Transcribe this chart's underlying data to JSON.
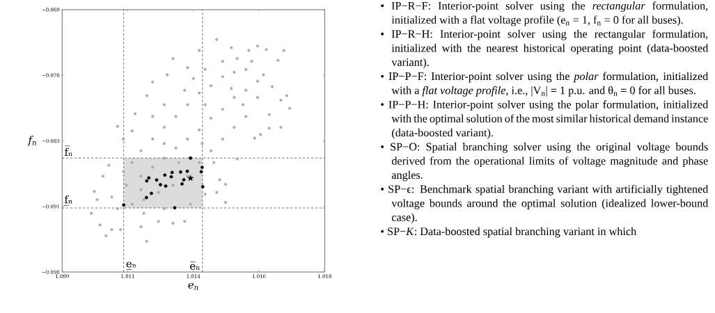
{
  "chart_data": {
    "type": "scatter",
    "xlabel": "e$_{n}$",
    "ylabel": "f$_{n}$",
    "xlim": [
      1.009,
      1.018
    ],
    "xticks": [
      {
        "value": 1.009,
        "label": "1.009"
      },
      {
        "value": 1.01125,
        "label": "1.011"
      },
      {
        "value": 1.0135,
        "label": "1.014"
      },
      {
        "value": 1.01575,
        "label": "1.016"
      },
      {
        "value": 1.018,
        "label": "1.018"
      }
    ],
    "ylim": [
      -0.098,
      -0.069
    ],
    "yticks": [
      {
        "value": -0.098,
        "label": "−0.098"
      },
      {
        "value": -0.09075,
        "label": "−0.091"
      },
      {
        "value": -0.0835,
        "label": "−0.083"
      },
      {
        "value": -0.07625,
        "label": "−0.076"
      },
      {
        "value": -0.069,
        "label": "−0.069"
      }
    ],
    "ref_lines": [
      {
        "axis": "x",
        "value": 1.01111,
        "label": "e̲ₙ",
        "line_style": "dashed"
      },
      {
        "axis": "x",
        "value": 1.01381,
        "label": "e̅ₙ",
        "line_style": "dashed"
      },
      {
        "axis": "y",
        "value": -0.0854,
        "label": "f̅ₙ",
        "line_style": "dashed"
      },
      {
        "axis": "y",
        "value": -0.09092,
        "label": "f̲ₙ",
        "line_style": "dashed"
      }
    ],
    "bands": [
      {
        "axis": "x",
        "from": 1.01111,
        "to": 1.01381,
        "color": "#dcdcdc"
      }
    ],
    "series": [
      {
        "color": "#808080",
        "marker": "circle",
        "x": [
          1.0143,
          1.0157,
          1.0166,
          1.0168,
          1.0165,
          1.0161,
          1.0156,
          1.0146,
          1.0146,
          1.0143,
          1.0119,
          1.0105,
          1.01,
          1.0101,
          1.0109,
          1.0115,
          1.0119,
          1.0128,
          1.0137,
          1.0148,
          1.0154,
          1.016,
          1.0164,
          1.0167,
          1.0161,
          1.0158,
          1.015,
          1.0144,
          1.0139,
          1.0132,
          1.0128,
          1.0123,
          1.0117,
          1.011,
          1.0107,
          1.0103,
          1.0102,
          1.0104,
          1.0106,
          1.0111,
          1.0114,
          1.0121,
          1.0126,
          1.0133,
          1.0139,
          1.0145,
          1.015,
          1.0155,
          1.0159,
          1.0162,
          1.0165,
          1.0114,
          1.0117,
          1.0121,
          1.0125,
          1.0129,
          1.0133,
          1.0137,
          1.0141,
          1.0145,
          1.0149,
          1.0153,
          1.0157,
          1.0112,
          1.0117,
          1.0121,
          1.0125,
          1.0129,
          1.0133,
          1.0137,
          1.0141,
          1.0145,
          1.0149,
          1.0153,
          1.0157,
          1.0114,
          1.0118,
          1.0123,
          1.0128,
          1.0133,
          1.0137,
          1.0141,
          1.0145,
          1.0149,
          1.0153,
          1.0109,
          1.0107,
          1.0118,
          1.0125,
          1.0134,
          1.0138,
          1.0125,
          1.0121,
          1.0132,
          1.0135,
          1.0148,
          1.0152,
          1.0142,
          1.0125,
          1.013,
          1.0117,
          1.0111,
          1.0139
        ],
        "values": [
          -0.0723,
          -0.073,
          -0.0735,
          -0.0799,
          -0.082,
          -0.0821,
          -0.0832,
          -0.0903,
          -0.0883,
          -0.0892,
          -0.0946,
          -0.094,
          -0.0915,
          -0.0891,
          -0.0819,
          -0.0805,
          -0.0785,
          -0.0744,
          -0.0735,
          -0.0732,
          -0.0735,
          -0.0734,
          -0.0746,
          -0.0785,
          -0.0806,
          -0.0828,
          -0.0855,
          -0.0878,
          -0.0894,
          -0.0924,
          -0.0926,
          -0.0924,
          -0.093,
          -0.0933,
          -0.0933,
          -0.0928,
          -0.09,
          -0.0874,
          -0.0862,
          -0.0833,
          -0.0824,
          -0.077,
          -0.0762,
          -0.0754,
          -0.0756,
          -0.0747,
          -0.0744,
          -0.0747,
          -0.0762,
          -0.0775,
          -0.079,
          -0.0859,
          -0.0846,
          -0.0833,
          -0.082,
          -0.0808,
          -0.0795,
          -0.0782,
          -0.0774,
          -0.0764,
          -0.0759,
          -0.0756,
          -0.0769,
          -0.0884,
          -0.0874,
          -0.0864,
          -0.0854,
          -0.0843,
          -0.0833,
          -0.0823,
          -0.081,
          -0.08,
          -0.0787,
          -0.0779,
          -0.0787,
          -0.0905,
          -0.09,
          -0.0892,
          -0.0884,
          -0.0874,
          -0.0859,
          -0.0846,
          -0.0833,
          -0.082,
          -0.0808,
          -0.091,
          -0.0897,
          -0.0915,
          -0.091,
          -0.0905,
          -0.0838,
          -0.0795,
          -0.0808,
          -0.0779,
          -0.0766,
          -0.0777,
          -0.0795,
          -0.0859,
          -0.0838,
          -0.0859,
          -0.0889,
          -0.0869,
          -0.0795
        ]
      },
      {
        "color": "#000000",
        "marker": "circle",
        "x": [
          1.0134,
          1.0138,
          1.01377,
          1.01329,
          1.01306,
          1.01277,
          1.01252,
          1.01274,
          1.01197,
          1.0119,
          1.01224,
          1.01237,
          1.01255,
          1.01317,
          1.01311,
          1.01382,
          1.01206,
          1.01189,
          1.01111,
          1.01286
        ],
        "values": [
          -0.0854,
          -0.08643,
          -0.08691,
          -0.08686,
          -0.08694,
          -0.08699,
          -0.08729,
          -0.08747,
          -0.0876,
          -0.08793,
          -0.08783,
          -0.08834,
          -0.0885,
          -0.0878,
          -0.08826,
          -0.08857,
          -0.08931,
          -0.08977,
          -0.09059,
          -0.0909
        ]
      },
      {
        "color": "#000000",
        "marker": "star",
        "x": [
          1.0134
        ],
        "values": [
          -0.08763
        ]
      }
    ],
    "annotations": [
      "• IP−R−F: Interior-point solver using the *rectangular* formulation, initialized with a flat voltage profile (e$_{n}$ = 1, f$_{n}$ = 0 for all buses).",
      "• IP−R−H: Interior-point solver using the rectangular formulation, initialized with the nearest historical operating point (data-boosted variant).",
      "• IP−P−F: Interior-point solver using the *polar* formulation, initialized with a *flat voltage profile*, i.e., |V$_{n}$| = 1 p.u. and θ$_{n}$ = 0 for all buses.",
      "• IP−P−H: Interior-point solver using the polar formulation, initialized with the optimal solution of the most similar historical demand instance (data-boosted variant).",
      "• SP−O: Spatial branching solver using the original voltage bounds derived from the operational limits of voltage magnitude and phase angles.",
      "• SP−ϵ: Benchmark spatial branching variant with artificially tightened voltage bounds around the optimal solution (idealized lower-bound case).",
      "• SP−*K*: Data-boosted spatial branching variant in which"
    ]
  }
}
